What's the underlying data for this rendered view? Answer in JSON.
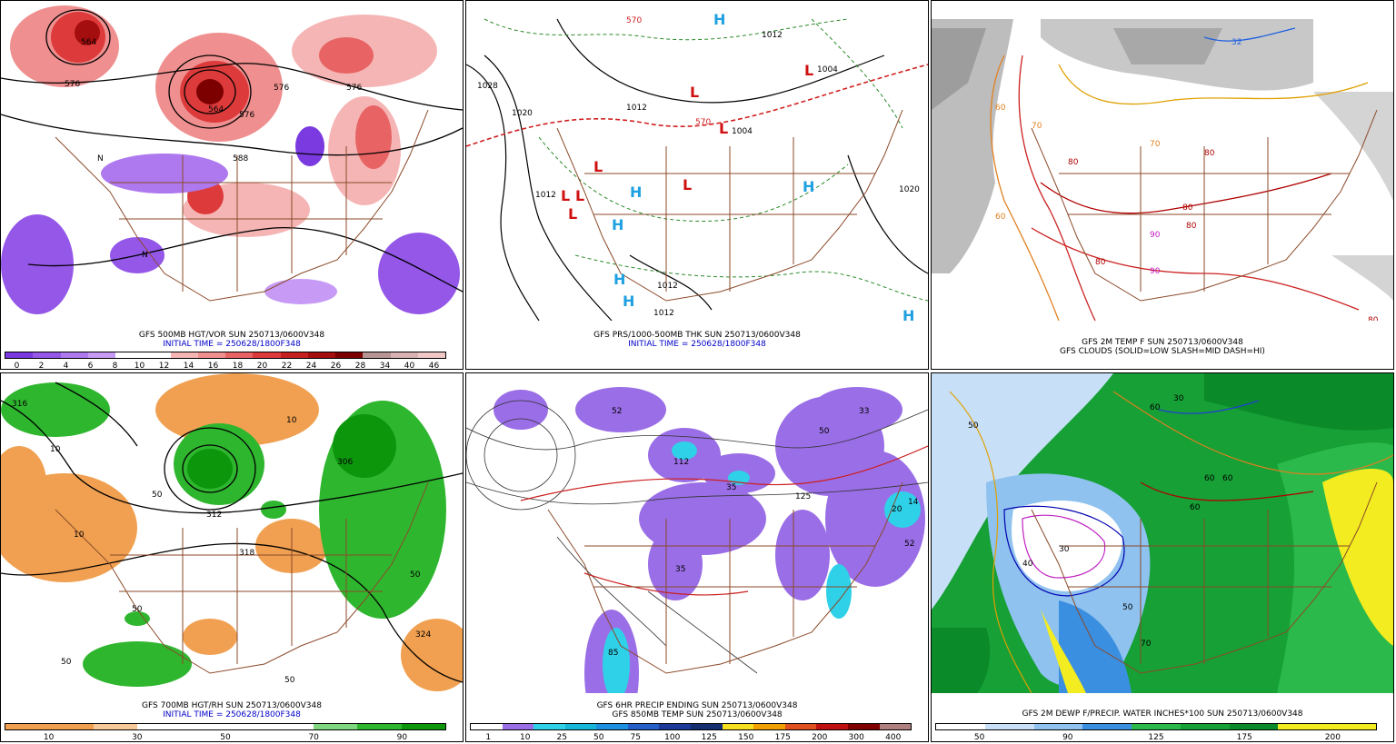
{
  "panels": [
    {
      "caption1": "GFS 500MB HGT/VOR SUN 250713/0600V348",
      "caption2": "INITIAL TIME = 250628/1800F348",
      "colors": [
        "#7a3ae0",
        "#9457e8",
        "#ae78ef",
        "#c79bf5",
        "#ffffff",
        "#ffffff",
        "#f5b5b5",
        "#ef8f8f",
        "#e86464",
        "#dd3b3b",
        "#c51f1f",
        "#a50e0e",
        "#7d0000",
        "#b89595",
        "#d9b3b3",
        "#f0c8c8"
      ],
      "ticks": [
        "0",
        "2",
        "4",
        "6",
        "8",
        "10",
        "12",
        "14",
        "16",
        "18",
        "20",
        "22",
        "24",
        "26",
        "28",
        "34",
        "40",
        "46"
      ],
      "labels": [
        "564",
        "576",
        "564",
        "576",
        "576",
        "576",
        "588",
        "N"
      ]
    },
    {
      "caption1": "GFS PRS/1000-500MB THK SUN 250713/0600V348",
      "caption2": "INITIAL TIME = 250628/1800F348",
      "labels": [
        "1028",
        "1020",
        "1012",
        "1012",
        "1004",
        "1004",
        "1020",
        "1012",
        "1012",
        "1012",
        "570",
        "570"
      ],
      "highs": [
        "H",
        "H",
        "H",
        "H",
        "H",
        "H",
        "H"
      ],
      "lows": [
        "L",
        "L",
        "L",
        "L",
        "L",
        "L",
        "L",
        "L"
      ]
    },
    {
      "caption1": "GFS 2M TEMP F SUN 250713/0600V348",
      "caption2": "GFS CLOUDS (SOLID=LOW SLASH=MID DASH=HI)",
      "labels": [
        "60",
        "70",
        "80",
        "90",
        "80",
        "70",
        "60",
        "80",
        "90",
        "80",
        "80",
        "32",
        "80"
      ]
    },
    {
      "caption1": "GFS 700MB HGT/RH SUN 250713/0600V348",
      "caption2": "INITIAL TIME = 250628/1800F348",
      "colors": [
        "#f0a050",
        "#f0a050",
        "#f7c99a",
        "#ffffff",
        "#ffffff",
        "#ffffff",
        "#ffffff",
        "#7fd77f",
        "#2fb62f",
        "#0c960c"
      ],
      "ticks": [
        "10",
        "30",
        "50",
        "70",
        "90"
      ],
      "labels": [
        "10",
        "10",
        "50",
        "50",
        "50",
        "50",
        "50",
        "312",
        "306",
        "318",
        "324",
        "316",
        "10"
      ]
    },
    {
      "caption1": "GFS 6HR PRECIP ENDING SUN 250713/0600V348",
      "caption2": "GFS 850MB TEMP SUN 250713/0600V348",
      "colors": [
        "#ffffff",
        "#9a6ee6",
        "#2fd1e8",
        "#16b7d9",
        "#1e90e0",
        "#2460c8",
        "#1c3a9a",
        "#142e70",
        "#f7e020",
        "#f0a000",
        "#e05020",
        "#c01010",
        "#800000",
        "#b08080"
      ],
      "ticks": [
        "1",
        "10",
        "25",
        "50",
        "75",
        "100",
        "125",
        "150",
        "175",
        "200",
        "300",
        "400"
      ],
      "labels": [
        "52",
        "112",
        "35",
        "35",
        "14",
        "20",
        "52",
        "125",
        "85",
        "50",
        "33"
      ]
    },
    {
      "caption1": "GFS 2M DEWP F/PRECIP. WATER INCHES*100 SUN 250713/0600V348",
      "colors": [
        "#ffffff",
        "#c7e0f7",
        "#8fc2ef",
        "#3b8fe0",
        "#2ab94a",
        "#16a036",
        "#0b8a2a",
        "#f2ec20",
        "#f2ec20"
      ],
      "ticks": [
        "50",
        "90",
        "125",
        "175",
        "200"
      ],
      "labels": [
        "50",
        "60",
        "60",
        "30",
        "40",
        "50",
        "70",
        "60",
        "30",
        "60"
      ]
    }
  ]
}
